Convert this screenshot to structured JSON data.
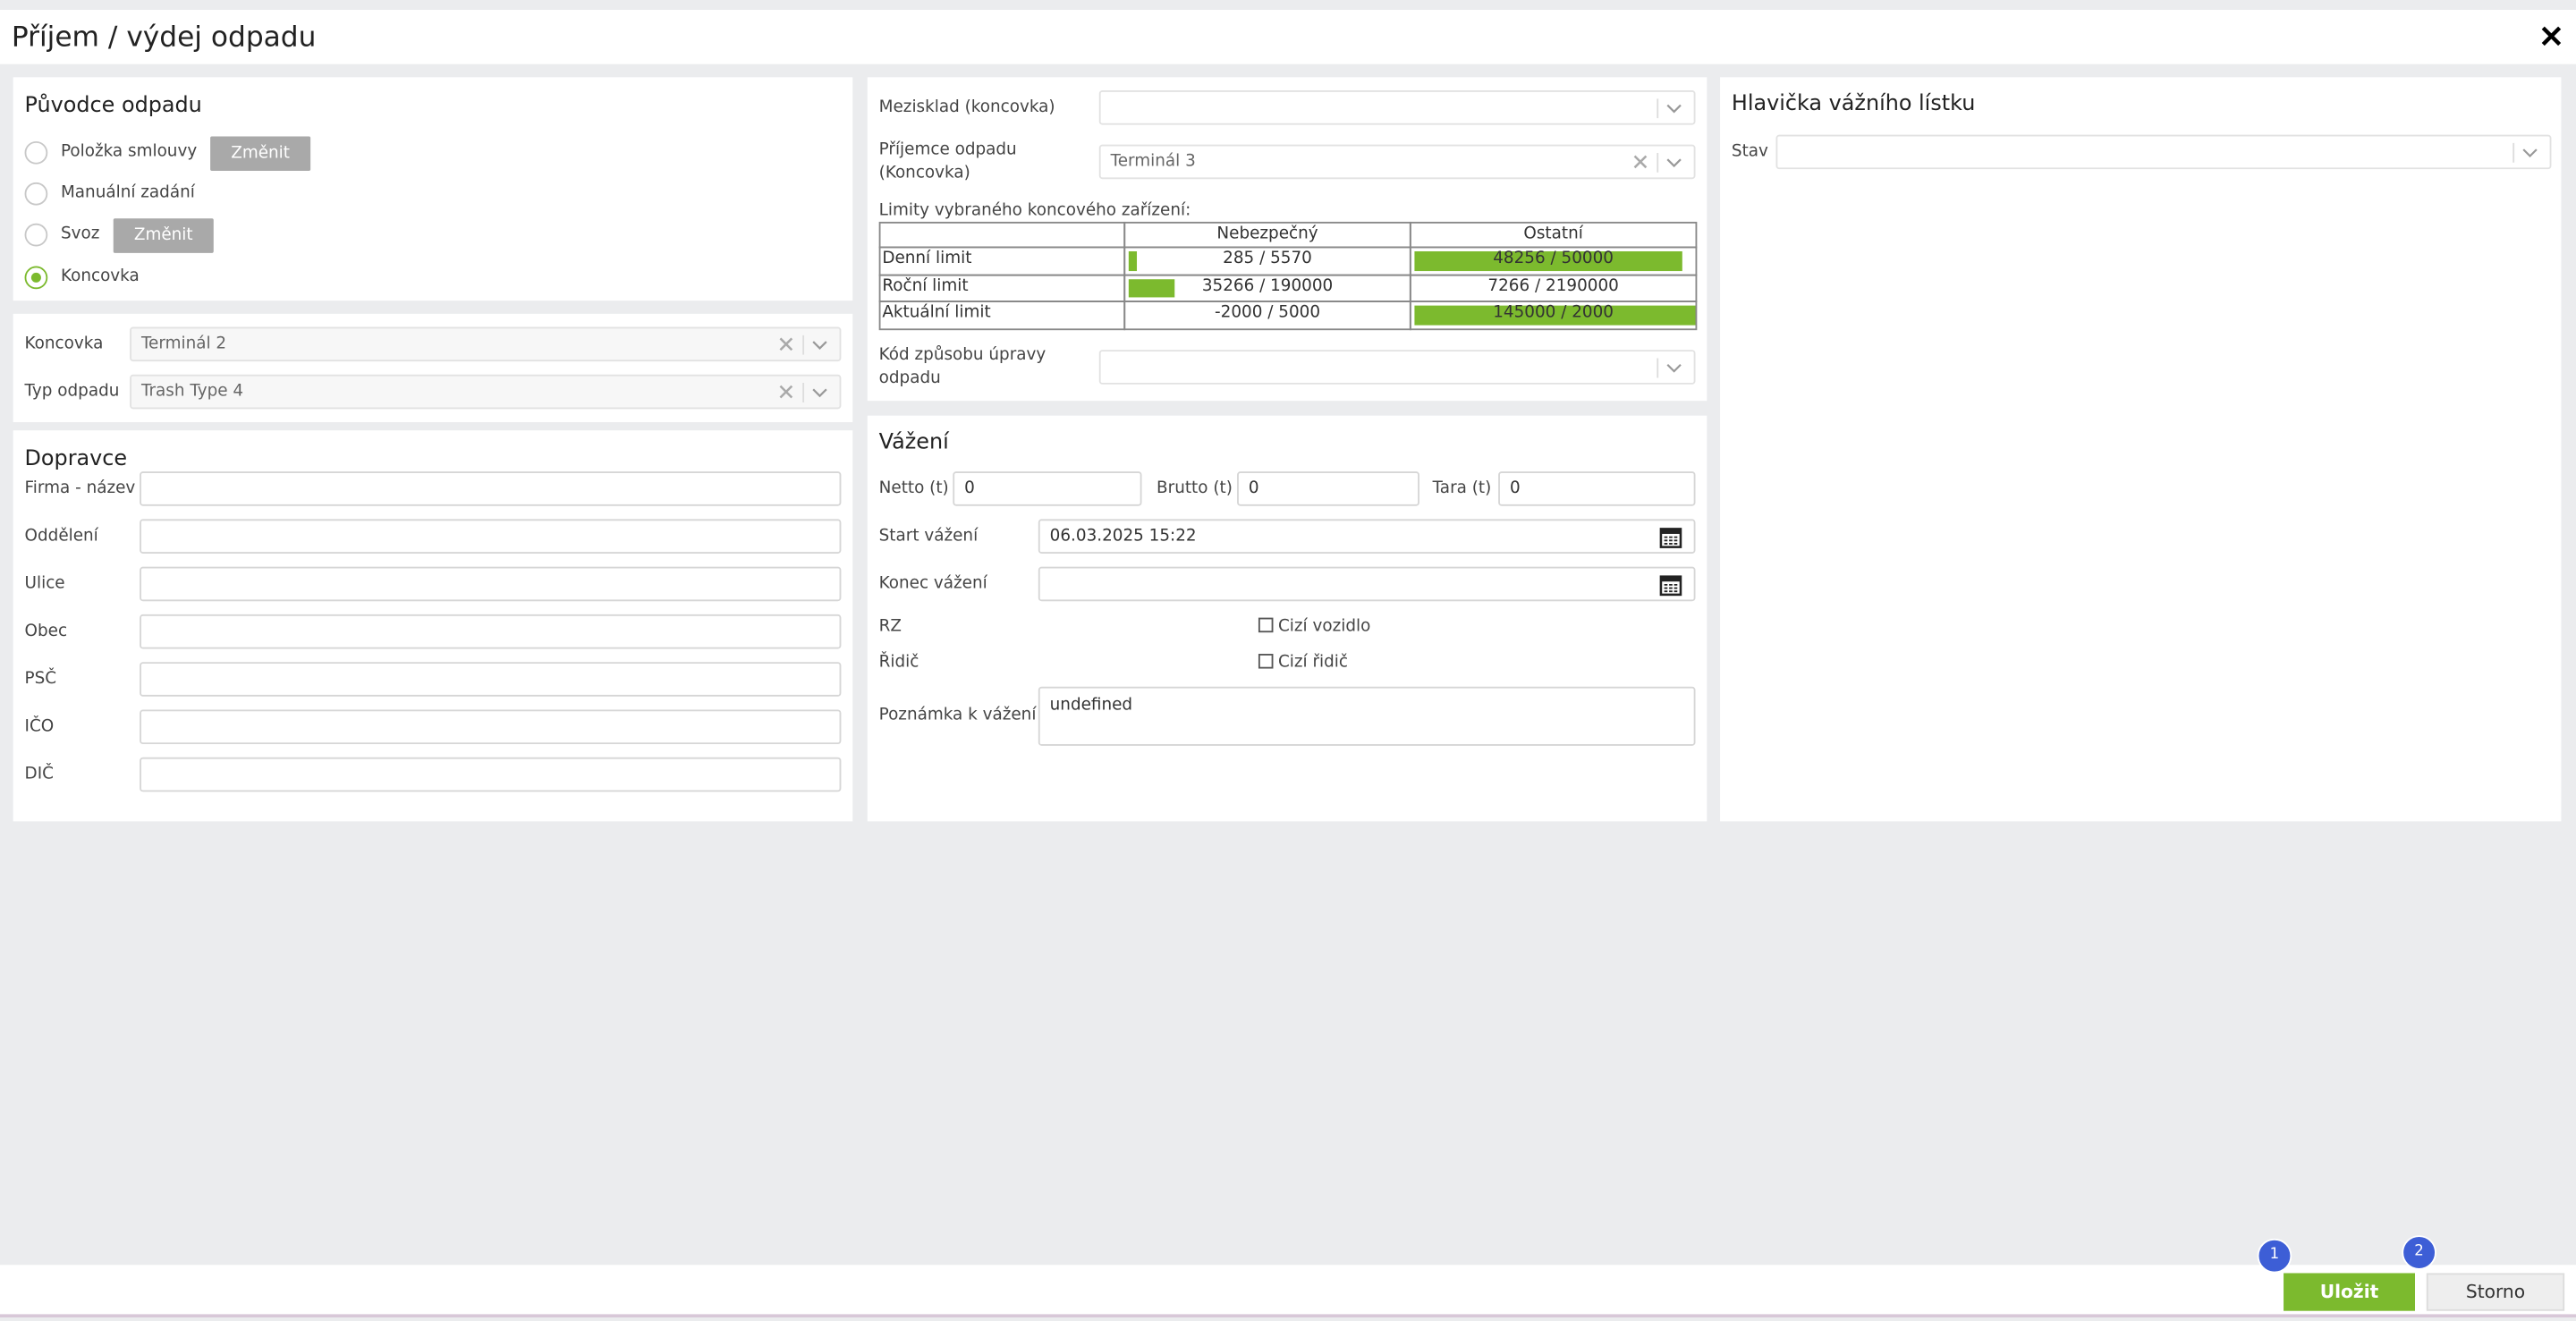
{
  "window": {
    "title": "Příjem / výdej odpadu"
  },
  "origin": {
    "title": "Původce odpadu",
    "options": [
      {
        "label": "Položka smlouvy",
        "button": "Změnit"
      },
      {
        "label": "Manuální zadání"
      },
      {
        "label": "Svoz",
        "button": "Změnit"
      },
      {
        "label": "Koncovka",
        "selected": true
      }
    ]
  },
  "target": {
    "fields": [
      {
        "label": "Koncovka",
        "value": "Terminál 2"
      },
      {
        "label": "Typ odpadu",
        "value": "Trash Type 4"
      }
    ]
  },
  "carrier": {
    "title": "Dopravce",
    "fields": [
      "Firma - název",
      "Oddělení",
      "Ulice",
      "Obec",
      "PSČ",
      "IČO",
      "DIČ"
    ]
  },
  "destination": {
    "warehouse_label": "Mezisklad (koncovka)",
    "recipient_label": "Příjemce odpadu (Koncovka)",
    "recipient_value": "Terminál 3",
    "limits_title": "Limity vybraného koncového zařízení:",
    "limits": {
      "columns": [
        "Nebezpečný",
        "Ostatní"
      ],
      "rows": [
        {
          "label": "Denní limit",
          "cells": [
            "285 / 5570",
            "48256 / 50000"
          ]
        },
        {
          "label": "Roční limit",
          "cells": [
            "35266 / 190000",
            "7266 / 2190000"
          ]
        },
        {
          "label": "Aktuální limit",
          "cells": [
            "-2000 / 5000",
            "145000 / 2000"
          ]
        }
      ]
    },
    "treatment_label": "Kód způsobu úpravy odpadu"
  },
  "weighing": {
    "title": "Vážení",
    "netto_label": "Netto (t)",
    "netto": "0",
    "brutto_label": "Brutto (t)",
    "brutto": "0",
    "tara_label": "Tara (t)",
    "tara": "0",
    "start_label": "Start vážení",
    "start": "06.03.2025 15:22",
    "end_label": "Konec vážení",
    "rz_label": "RZ",
    "foreign_vehicle": "Cizí vozidlo",
    "driver_label": "Řidič",
    "foreign_driver": "Cizí řidič",
    "note_label": "Poznámka k vážení",
    "note": "undefined"
  },
  "ticket": {
    "title": "Hlavička vážního lístku",
    "status_label": "Stav"
  },
  "actions": {
    "save": "Uložit",
    "cancel": "Storno",
    "badges": [
      "1",
      "2"
    ]
  }
}
